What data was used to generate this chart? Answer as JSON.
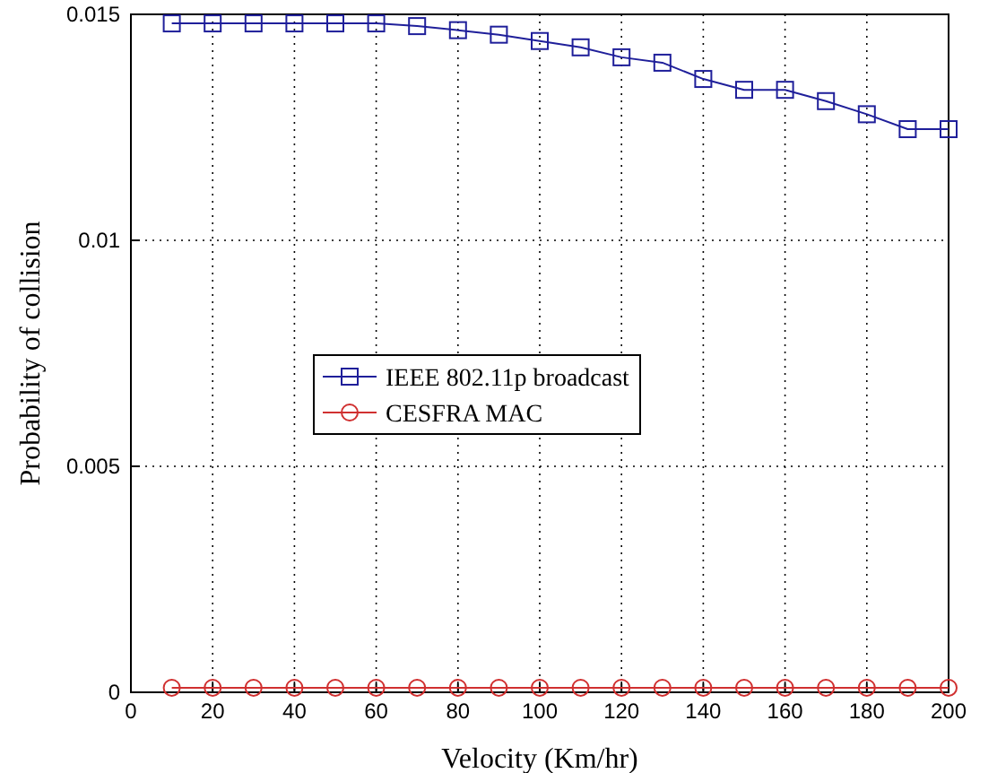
{
  "chart_data": {
    "type": "line",
    "xlabel": "Velocity (Km/hr)",
    "ylabel": "Probability of collision",
    "x": [
      10,
      20,
      30,
      40,
      50,
      60,
      70,
      80,
      90,
      100,
      110,
      120,
      130,
      140,
      150,
      160,
      170,
      180,
      190,
      200
    ],
    "xlim": [
      0,
      200
    ],
    "xticks": [
      0,
      20,
      40,
      60,
      80,
      100,
      120,
      140,
      160,
      180,
      200
    ],
    "ylim": [
      0,
      0.015
    ],
    "yticks": [
      0,
      0.005,
      0.01,
      0.015
    ],
    "grid": true,
    "legend": "center left",
    "line_style": "solid",
    "series": [
      {
        "name": "IEEE 802.11p broadcast",
        "color": "#1f1f9a",
        "marker": "square",
        "values": [
          0.0148,
          0.0148,
          0.0148,
          0.0148,
          0.0148,
          0.0148,
          0.01474,
          0.01465,
          0.01455,
          0.01441,
          0.01427,
          0.01405,
          0.01393,
          0.01357,
          0.01333,
          0.01333,
          0.01308,
          0.01279,
          0.01246,
          0.01246
        ]
      },
      {
        "name": "CESFRA MAC",
        "color": "#d03030",
        "marker": "circle",
        "values": [
          0.0001,
          0.0001,
          0.0001,
          0.0001,
          0.0001,
          0.0001,
          0.0001,
          0.0001,
          0.0001,
          0.0001,
          0.0001,
          0.0001,
          0.0001,
          0.0001,
          0.0001,
          0.0001,
          0.0001,
          0.0001,
          0.0001,
          0.0001
        ]
      }
    ]
  }
}
